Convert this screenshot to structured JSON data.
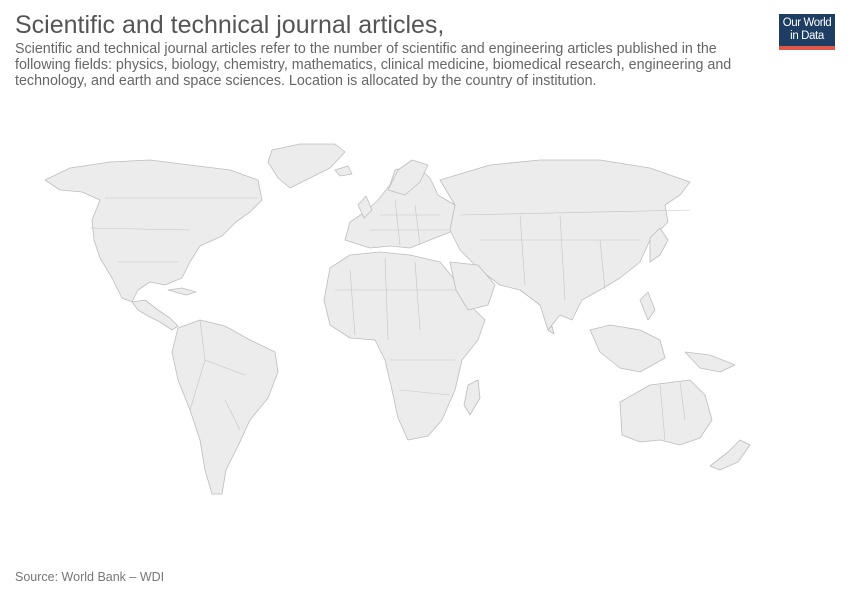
{
  "header": {
    "title": "Scientific and technical journal articles,",
    "subtitle": "Scientific and technical journal articles refer to the number of scientific and engineering articles published in the following fields: physics, biology, chemistry, mathematics, clinical medicine, biomedical research, engineering and technology, and earth and space sciences. Location is allocated by the country of institution."
  },
  "logo": {
    "line1": "Our World",
    "line2": "in Data",
    "bg_color": "#1d3d63",
    "accent_color": "#e0584a"
  },
  "map": {
    "land_color": "#ececec",
    "border_color": "#bdbdbd",
    "data_shown": "none"
  },
  "footer": {
    "source": "Source: World Bank – WDI"
  }
}
